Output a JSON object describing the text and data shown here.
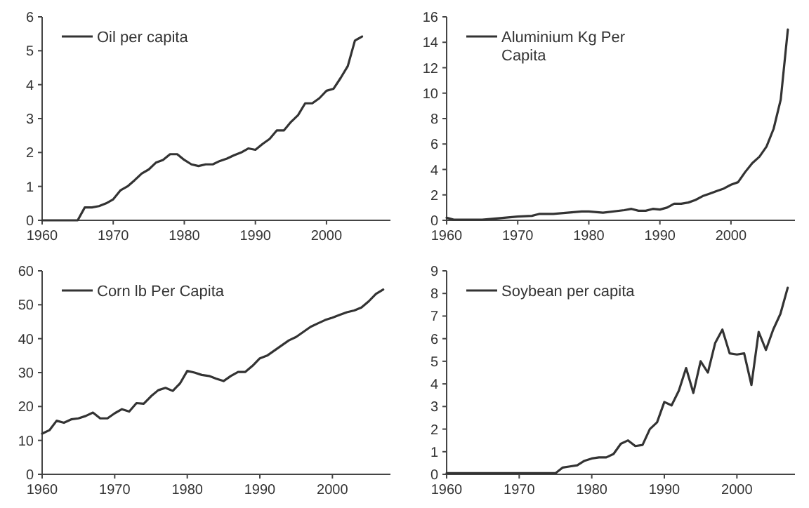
{
  "chart_data": [
    {
      "type": "line",
      "legend": "top left",
      "xlim": [
        1960,
        2009
      ],
      "xticks": [
        1960,
        1970,
        1980,
        1990,
        2000
      ],
      "ylim": [
        0,
        6
      ],
      "yticks": [
        0,
        1,
        2,
        3,
        4,
        5,
        6
      ],
      "series": [
        {
          "name": "Oil per capita",
          "color": "#333333",
          "x": [
            1960,
            1961,
            1962,
            1963,
            1964,
            1965,
            1966,
            1967,
            1968,
            1969,
            1970,
            1971,
            1972,
            1973,
            1974,
            1975,
            1976,
            1977,
            1978,
            1979,
            1980,
            1981,
            1982,
            1983,
            1984,
            1985,
            1986,
            1987,
            1988,
            1989,
            1990,
            1991,
            1992,
            1993,
            1994,
            1995,
            1996,
            1997,
            1998,
            1999,
            2000,
            2001,
            2002,
            2003,
            2004,
            2005
          ],
          "values": [
            0,
            0,
            0,
            0,
            0,
            0,
            0.38,
            0.38,
            0.42,
            0.5,
            0.62,
            0.88,
            1.0,
            1.18,
            1.38,
            1.5,
            1.7,
            1.78,
            1.95,
            1.95,
            1.78,
            1.65,
            1.6,
            1.65,
            1.65,
            1.75,
            1.82,
            1.92,
            2.0,
            2.12,
            2.08,
            2.25,
            2.4,
            2.65,
            2.65,
            2.9,
            3.1,
            3.45,
            3.45,
            3.6,
            3.82,
            3.88,
            4.2,
            4.55,
            5.3,
            5.42
          ]
        }
      ]
    },
    {
      "type": "line",
      "legend": "top left",
      "xlim": [
        1960,
        2009
      ],
      "xticks": [
        1960,
        1970,
        1980,
        1990,
        2000
      ],
      "ylim": [
        0,
        16
      ],
      "yticks": [
        0,
        2,
        4,
        6,
        8,
        10,
        12,
        14,
        16
      ],
      "series": [
        {
          "name": "Aluminium Kg Per Capita",
          "color": "#333333",
          "x": [
            1960,
            1961,
            1963,
            1965,
            1967,
            1970,
            1972,
            1973,
            1975,
            1977,
            1979,
            1980,
            1982,
            1985,
            1986,
            1987,
            1988,
            1989,
            1990,
            1991,
            1992,
            1993,
            1994,
            1995,
            1996,
            1997,
            1998,
            1999,
            2000,
            2001,
            2002,
            2003,
            2004,
            2005,
            2006,
            2007,
            2008
          ],
          "values": [
            0.2,
            0.05,
            0.05,
            0.05,
            0.15,
            0.3,
            0.35,
            0.5,
            0.5,
            0.6,
            0.7,
            0.7,
            0.6,
            0.8,
            0.9,
            0.75,
            0.75,
            0.9,
            0.85,
            1.0,
            1.3,
            1.3,
            1.4,
            1.6,
            1.9,
            2.1,
            2.3,
            2.5,
            2.8,
            3.0,
            3.8,
            4.5,
            5.0,
            5.8,
            7.2,
            9.5,
            15.0
          ]
        }
      ]
    },
    {
      "type": "line",
      "legend": "top left",
      "xlim": [
        1960,
        2008
      ],
      "xticks": [
        1960,
        1970,
        1980,
        1990,
        2000
      ],
      "ylim": [
        0,
        60
      ],
      "yticks": [
        0,
        10,
        20,
        30,
        40,
        50,
        60
      ],
      "series": [
        {
          "name": "Corn lb Per Capita",
          "color": "#333333",
          "x": [
            1960,
            1961,
            1962,
            1963,
            1964,
            1965,
            1966,
            1967,
            1968,
            1969,
            1970,
            1971,
            1972,
            1973,
            1974,
            1975,
            1976,
            1977,
            1978,
            1979,
            1980,
            1981,
            1982,
            1983,
            1984,
            1985,
            1986,
            1987,
            1988,
            1989,
            1990,
            1991,
            1992,
            1993,
            1994,
            1995,
            1996,
            1997,
            1998,
            1999,
            2000,
            2001,
            2002,
            2003,
            2004,
            2005,
            2006,
            2007
          ],
          "values": [
            12,
            13,
            15.8,
            15.2,
            16.2,
            16.5,
            17.2,
            18.2,
            16.5,
            16.5,
            18,
            19.2,
            18.5,
            21,
            20.8,
            23,
            24.8,
            25.5,
            24.6,
            26.8,
            30.5,
            30,
            29.3,
            29,
            28.2,
            27.5,
            29,
            30.2,
            30.2,
            32,
            34.2,
            35,
            36.5,
            38,
            39.5,
            40.5,
            42,
            43.5,
            44.5,
            45.5,
            46.2,
            47,
            47.8,
            48.3,
            49.2,
            51,
            53.2,
            54.5
          ]
        }
      ]
    },
    {
      "type": "line",
      "legend": "top left",
      "xlim": [
        1960,
        2008
      ],
      "xticks": [
        1960,
        1970,
        1980,
        1990,
        2000
      ],
      "ylim": [
        0,
        9
      ],
      "yticks": [
        0,
        1,
        2,
        3,
        4,
        5,
        6,
        7,
        8,
        9
      ],
      "series": [
        {
          "name": "Soybean per capita",
          "color": "#333333",
          "x": [
            1960,
            1965,
            1970,
            1975,
            1976,
            1977,
            1978,
            1979,
            1980,
            1981,
            1982,
            1983,
            1984,
            1985,
            1986,
            1987,
            1988,
            1989,
            1990,
            1991,
            1992,
            1993,
            1994,
            1995,
            1996,
            1997,
            1998,
            1999,
            2000,
            2001,
            2002,
            2003,
            2004,
            2005,
            2006,
            2007
          ],
          "values": [
            0.05,
            0.05,
            0.05,
            0.05,
            0.3,
            0.35,
            0.4,
            0.6,
            0.7,
            0.75,
            0.75,
            0.9,
            1.35,
            1.5,
            1.25,
            1.3,
            2.0,
            2.3,
            3.2,
            3.05,
            3.7,
            4.7,
            3.6,
            5.0,
            4.5,
            5.8,
            6.4,
            5.35,
            5.3,
            5.35,
            3.95,
            6.3,
            5.5,
            6.4,
            7.1,
            8.25
          ]
        }
      ]
    }
  ]
}
